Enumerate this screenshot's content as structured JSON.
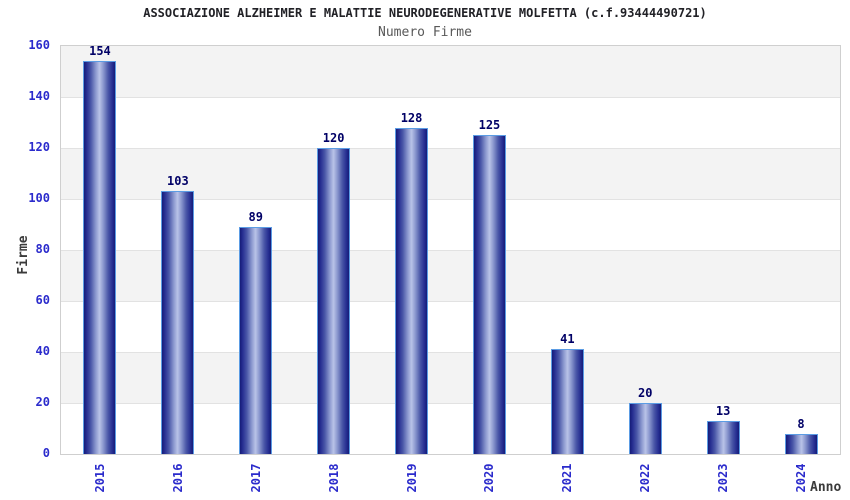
{
  "header": {
    "title": "ASSOCIAZIONE ALZHEIMER E MALATTIE NEURODEGENERATIVE MOLFETTA (c.f.93444490721)",
    "subtitle": "Numero Firme"
  },
  "chart_data": {
    "type": "bar",
    "title": "Numero Firme",
    "categories": [
      "2015",
      "2016",
      "2017",
      "2018",
      "2019",
      "2020",
      "2021",
      "2022",
      "2023",
      "2024"
    ],
    "values": [
      154,
      103,
      89,
      120,
      128,
      125,
      41,
      20,
      13,
      8
    ],
    "xlabel": "Anno",
    "ylabel": "Firme",
    "ylim": [
      0,
      160
    ],
    "yticks": [
      0,
      20,
      40,
      60,
      80,
      100,
      120,
      140,
      160
    ],
    "grid": "horizontal bands every 20 units, alternating gray/white",
    "legend": "none",
    "value_labels": "above each bar"
  },
  "colors": {
    "bar_edge_dark": "#161c78",
    "bar_center_light": "#b9c3e8",
    "bar_border": "#5b9ce4",
    "tick_label": "#2b2bcc",
    "value_label": "#000066",
    "axis_label": "#3b3b3b",
    "title": "#212126",
    "subtitle": "#595959",
    "band_gray": "#f3f3f3",
    "band_white": "#ffffff",
    "plot_border": "#cfcfcf"
  }
}
